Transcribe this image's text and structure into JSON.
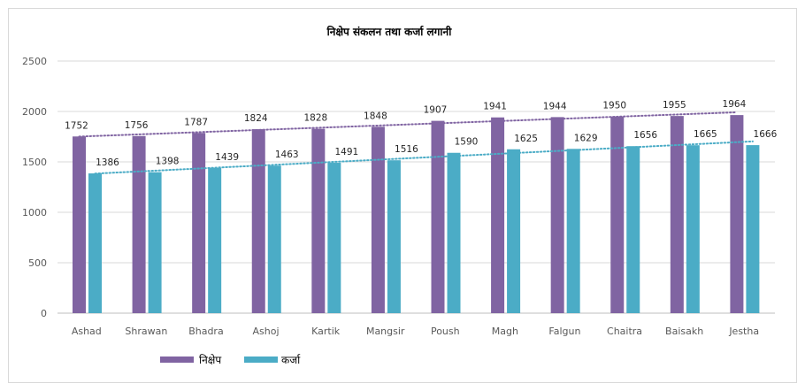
{
  "chart_data": {
    "type": "bar",
    "title": "निक्षेप संकलन तथा कर्जा लगानी",
    "categories": [
      "Ashad",
      "Shrawan",
      "Bhadra",
      "Ashoj",
      "Kartik",
      "Mangsir",
      "Poush",
      "Magh",
      "Falgun",
      "Chaitra",
      "Baisakh",
      "Jestha"
    ],
    "series": [
      {
        "name": "निक्षेप",
        "color": "#8064a2",
        "values": [
          1752,
          1756,
          1787,
          1824,
          1828,
          1848,
          1907,
          1941,
          1944,
          1950,
          1955,
          1964
        ]
      },
      {
        "name": "कर्जा",
        "color": "#4bacc6",
        "values": [
          1386,
          1398,
          1439,
          1463,
          1491,
          1516,
          1590,
          1625,
          1629,
          1656,
          1665,
          1666
        ]
      }
    ],
    "trendlines": true,
    "yticks": [
      0,
      500,
      1000,
      1500,
      2000,
      2500
    ],
    "ylim": [
      0,
      2500
    ],
    "grid": true,
    "legend": "bottom-left"
  }
}
